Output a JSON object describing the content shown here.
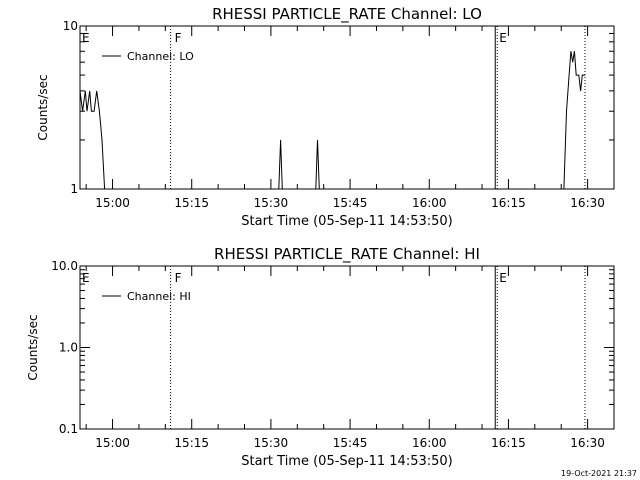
{
  "footer_timestamp": "19-Oct-2021 21:37",
  "colors": {
    "axis": "#000000",
    "data": "#000000",
    "background": "#ffffff"
  },
  "chart_data": [
    {
      "type": "line",
      "title": "RHESSI PARTICLE_RATE Channel: LO",
      "xlabel": "Start Time (05-Sep-11 14:53:50)",
      "ylabel": "Counts/sec",
      "y_scale": "log",
      "ylim": [
        1,
        10
      ],
      "y_tick_labels": [
        "1",
        "10"
      ],
      "xlim": [
        "14:53:50",
        "16:35:00"
      ],
      "x_tick_labels": [
        "15:00",
        "15:15",
        "15:30",
        "15:45",
        "16:00",
        "16:15",
        "16:30"
      ],
      "legend": {
        "position": "top-left",
        "entries": [
          "Channel: LO"
        ]
      },
      "markers": [
        {
          "label": "E",
          "time": "14:53:50",
          "style": "solid"
        },
        {
          "label": "F",
          "time": "15:11:00",
          "style": "dotted"
        },
        {
          "label": "E",
          "time": "16:12:30",
          "style": "solid"
        },
        {
          "label": "",
          "time": "16:29:30",
          "style": "dotted"
        }
      ],
      "series": [
        {
          "name": "Channel: LO",
          "points": [
            [
              "14:53:50",
              4.0
            ],
            [
              "14:54:20",
              3.0
            ],
            [
              "14:54:50",
              4.0
            ],
            [
              "14:55:10",
              3.0
            ],
            [
              "14:55:40",
              4.0
            ],
            [
              "14:56:00",
              3.0
            ],
            [
              "14:56:30",
              3.0
            ],
            [
              "14:57:00",
              4.0
            ],
            [
              "14:57:30",
              3.0
            ],
            [
              "14:58:00",
              2.0
            ],
            [
              "14:58:30",
              1.0
            ],
            [
              "15:31:30",
              1.0
            ],
            [
              "15:31:50",
              2.0
            ],
            [
              "15:32:10",
              1.0
            ],
            [
              "15:38:30",
              1.0
            ],
            [
              "15:38:50",
              2.0
            ],
            [
              "15:39:10",
              1.0
            ],
            [
              "16:25:30",
              1.0
            ],
            [
              "16:26:00",
              3.0
            ],
            [
              "16:26:30",
              5.0
            ],
            [
              "16:26:50",
              7.0
            ],
            [
              "16:27:10",
              6.0
            ],
            [
              "16:27:30",
              7.0
            ],
            [
              "16:27:50",
              5.0
            ],
            [
              "16:28:20",
              5.0
            ],
            [
              "16:28:40",
              4.0
            ],
            [
              "16:29:00",
              5.0
            ],
            [
              "16:29:30",
              5.0
            ]
          ]
        }
      ]
    },
    {
      "type": "line",
      "title": "RHESSI PARTICLE_RATE Channel: HI",
      "xlabel": "Start Time (05-Sep-11 14:53:50)",
      "ylabel": "Counts/sec",
      "y_scale": "log",
      "ylim": [
        0.1,
        10
      ],
      "y_tick_labels": [
        "0.1",
        "1.0",
        "10.0"
      ],
      "xlim": [
        "14:53:50",
        "16:35:00"
      ],
      "x_tick_labels": [
        "15:00",
        "15:15",
        "15:30",
        "15:45",
        "16:00",
        "16:15",
        "16:30"
      ],
      "legend": {
        "position": "top-left",
        "entries": [
          "Channel: HI"
        ]
      },
      "markers": [
        {
          "label": "E",
          "time": "14:53:50",
          "style": "solid"
        },
        {
          "label": "F",
          "time": "15:11:00",
          "style": "dotted"
        },
        {
          "label": "E",
          "time": "16:12:30",
          "style": "solid"
        },
        {
          "label": "",
          "time": "16:29:30",
          "style": "dotted"
        }
      ],
      "series": [
        {
          "name": "Channel: HI",
          "points": []
        }
      ]
    }
  ]
}
